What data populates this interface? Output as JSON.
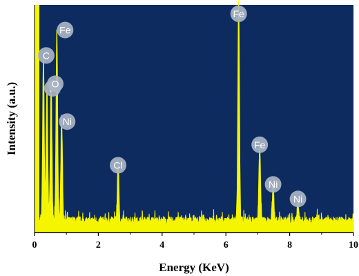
{
  "chart_data": {
    "type": "line",
    "title": "",
    "xlabel": "Energy (KeV)",
    "ylabel": "Intensity (a.u.)",
    "xlim": [
      0,
      10
    ],
    "ylim": [
      0,
      100
    ],
    "xticks": [
      "0",
      "2",
      "4",
      "6",
      "8",
      "10"
    ],
    "grid": false,
    "background_color": "#0d2b5e",
    "line_color": "#f5f500",
    "label_badge_color": "#a9b4c4",
    "peaks": [
      {
        "label": "C",
        "x": 0.28,
        "y": 72
      },
      {
        "label": "Fe",
        "x": 0.7,
        "y": 85
      },
      {
        "label": "N",
        "x": 0.39,
        "y": 60
      },
      {
        "label": "O",
        "x": 0.52,
        "y": 62
      },
      {
        "label": "Ni",
        "x": 0.85,
        "y": 46
      },
      {
        "label": "Cl",
        "x": 2.62,
        "y": 25
      },
      {
        "label": "Fe",
        "x": 6.4,
        "y": 100
      },
      {
        "label": "Fe",
        "x": 7.06,
        "y": 34
      },
      {
        "label": "Ni",
        "x": 7.48,
        "y": 16
      },
      {
        "label": "Ni",
        "x": 8.26,
        "y": 9
      }
    ]
  }
}
